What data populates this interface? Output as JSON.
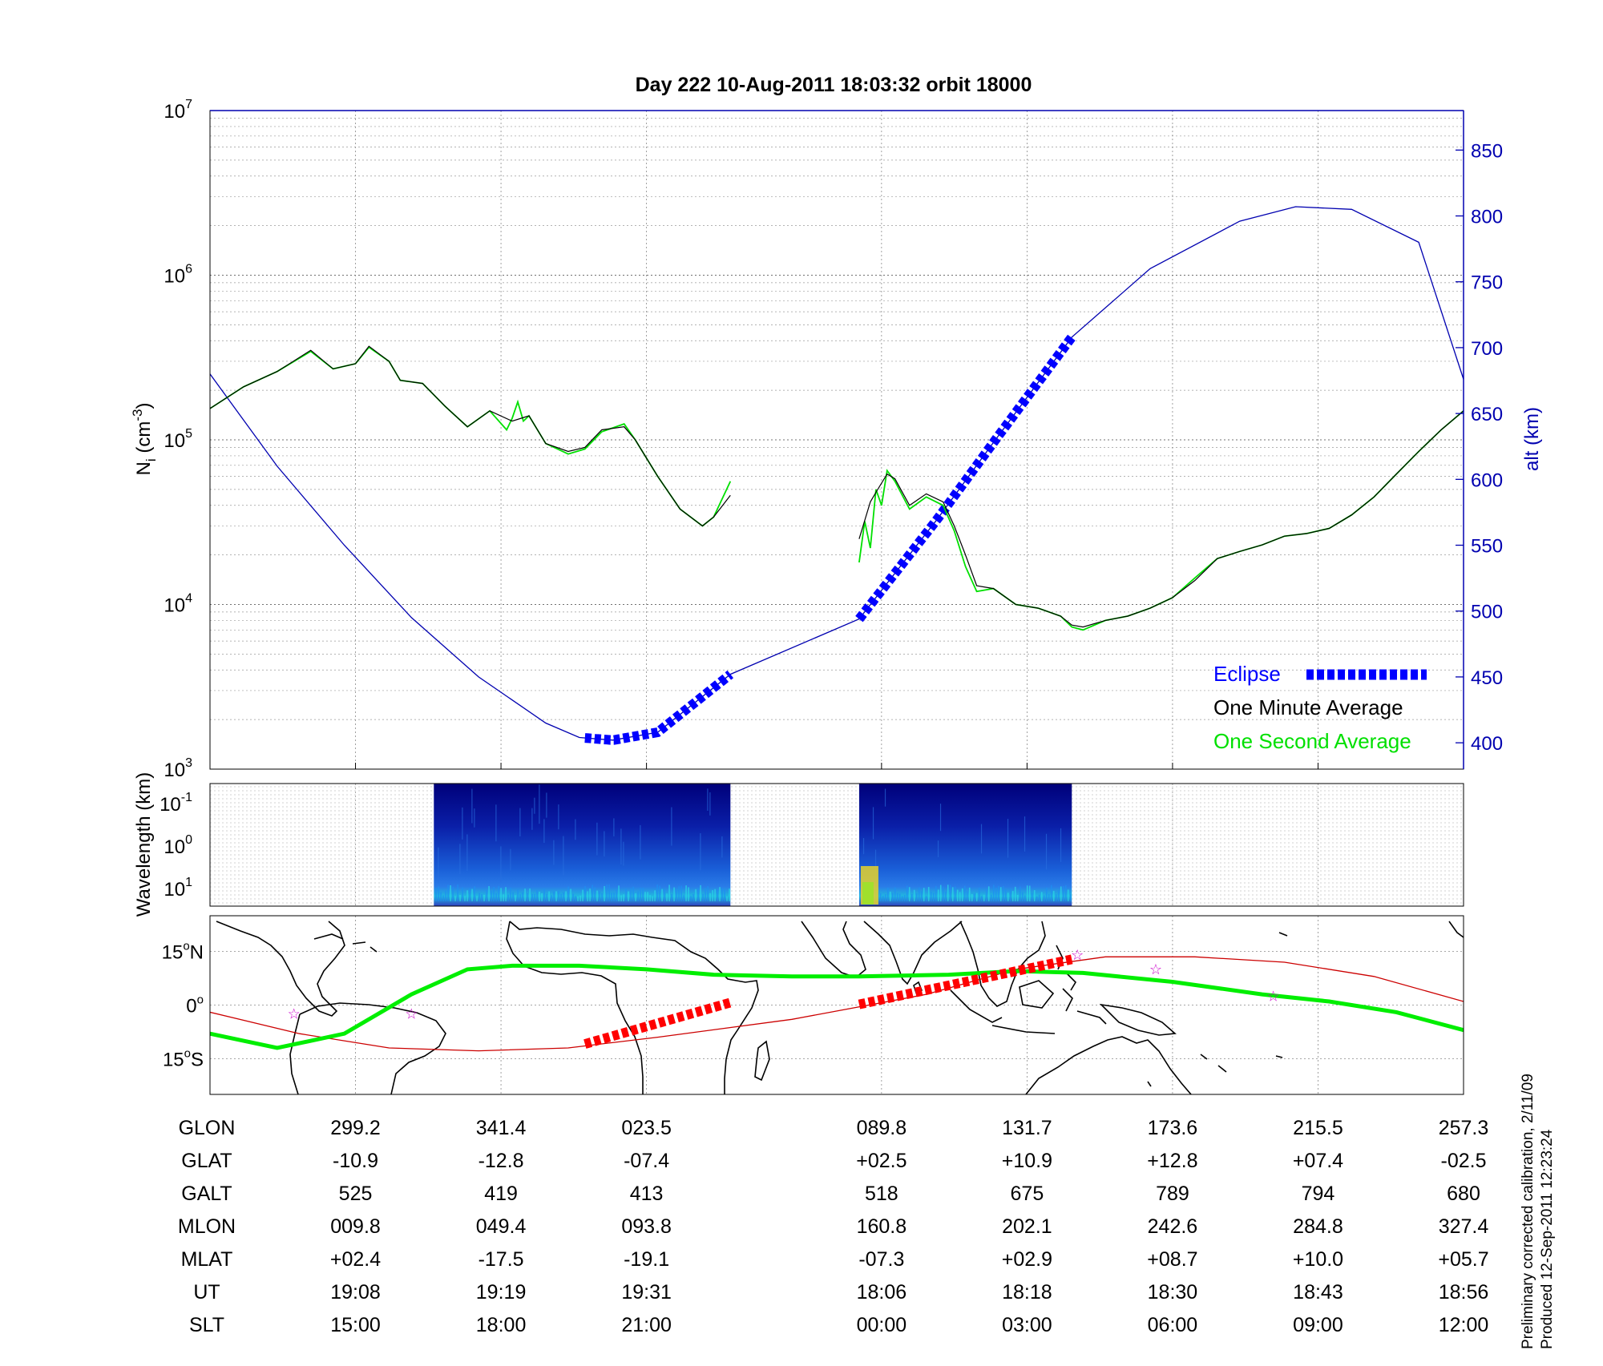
{
  "title": "Day 222  10-Aug-2011 18:03:32   orbit 18000",
  "footnote_line1": "Preliminary corrected calibration, 2/11/09",
  "footnote_line2": "Produced 12-Sep-2011 12:23:24",
  "colors": {
    "altitude": "#0000b0",
    "eclipse": "#0000ff",
    "minute_avg": "#000000",
    "second_avg": "#00e000",
    "track_green": "#00ee00",
    "track_red": "#cc0000",
    "eclipse_map": "#ff0000",
    "star": "#cc00cc"
  },
  "chart_data": [
    {
      "type": "line",
      "panel": "ion density and altitude",
      "ylabel_main": "N",
      "ylabel_sub": "i",
      "ylabel_unit": " (cm",
      "ylabel_sup": "-3",
      "ylabel_close": ")",
      "y_scale": "log",
      "ylim": [
        1000,
        10000000
      ],
      "y_ticks": [
        {
          "base": "10",
          "exp": "3"
        },
        {
          "base": "10",
          "exp": "4"
        },
        {
          "base": "10",
          "exp": "5"
        },
        {
          "base": "10",
          "exp": "6"
        },
        {
          "base": "10",
          "exp": "7"
        }
      ],
      "y2label": "alt (km)",
      "y2lim": [
        380,
        880
      ],
      "y2_ticks": [
        "400",
        "450",
        "500",
        "550",
        "600",
        "650",
        "700",
        "750",
        "800",
        "850"
      ],
      "x_unit": "minutes of the orbit (UT order: 18:06 → 19:31), centre at 18:06",
      "grid": true,
      "legend": {
        "position": "bottom-right",
        "entries": [
          {
            "label": "Eclipse",
            "style": "thick-dashed-blue"
          },
          {
            "label": "One Minute Average",
            "style": "black"
          },
          {
            "label": "One Second Average",
            "style": "green"
          }
        ]
      },
      "series": [
        {
          "name": "One Minute Average",
          "segments": [
            [
              [
                0,
                155000
              ],
              [
                3,
                210000
              ],
              [
                6,
                260000
              ],
              [
                9,
                350000
              ],
              [
                11,
                270000
              ],
              [
                13,
                290000
              ],
              [
                14.2,
                370000
              ],
              [
                16,
                300000
              ],
              [
                17,
                230000
              ],
              [
                19,
                220000
              ],
              [
                21,
                160000
              ],
              [
                23,
                120000
              ],
              [
                25,
                150000
              ],
              [
                27,
                130000
              ],
              [
                28.5,
                140000
              ],
              [
                30,
                95000
              ],
              [
                32,
                85000
              ],
              [
                33.5,
                90000
              ],
              [
                35,
                115000
              ],
              [
                37,
                120000
              ],
              [
                38,
                100000
              ],
              [
                40,
                60000
              ],
              [
                42,
                38000
              ],
              [
                44,
                30000
              ],
              [
                45,
                34000
              ],
              [
                46.5,
                46000
              ]
            ],
            [
              [
                58,
                25000
              ],
              [
                59,
                42000
              ],
              [
                59.5,
                48000
              ],
              [
                60.5,
                62000
              ],
              [
                61.2,
                58000
              ],
              [
                62.5,
                40000
              ],
              [
                64,
                47000
              ],
              [
                65.5,
                42000
              ],
              [
                66.5,
                30000
              ],
              [
                67.5,
                20000
              ],
              [
                68.5,
                13000
              ],
              [
                70,
                12500
              ],
              [
                72,
                10000
              ],
              [
                74,
                9500
              ],
              [
                76,
                8500
              ],
              [
                77,
                7500
              ],
              [
                78,
                7300
              ],
              [
                80,
                8000
              ],
              [
                82,
                8500
              ],
              [
                84,
                9500
              ],
              [
                86,
                11000
              ],
              [
                88,
                14000
              ],
              [
                90,
                19000
              ],
              [
                92,
                21000
              ],
              [
                94,
                23000
              ],
              [
                96,
                26000
              ],
              [
                98,
                27000
              ],
              [
                100,
                29000
              ],
              [
                102,
                35000
              ],
              [
                104,
                45000
              ],
              [
                106,
                62000
              ],
              [
                108,
                85000
              ],
              [
                110,
                115000
              ],
              [
                112,
                150000
              ]
            ]
          ]
        },
        {
          "name": "One Second Average",
          "segments": [
            [
              [
                0,
                155000
              ],
              [
                3,
                210000
              ],
              [
                6,
                260000
              ],
              [
                9,
                345000
              ],
              [
                11,
                270000
              ],
              [
                13,
                290000
              ],
              [
                14.2,
                365000
              ],
              [
                16,
                300000
              ],
              [
                17,
                230000
              ],
              [
                19,
                220000
              ],
              [
                21,
                160000
              ],
              [
                23,
                120000
              ],
              [
                25,
                150000
              ],
              [
                26.5,
                115000
              ],
              [
                27,
                135000
              ],
              [
                27.5,
                170000
              ],
              [
                28,
                130000
              ],
              [
                28.5,
                140000
              ],
              [
                30,
                95000
              ],
              [
                32,
                82000
              ],
              [
                33.5,
                88000
              ],
              [
                35,
                112000
              ],
              [
                37,
                125000
              ],
              [
                38,
                100000
              ],
              [
                40,
                60000
              ],
              [
                42,
                38000
              ],
              [
                44,
                30000
              ],
              [
                45,
                34000
              ],
              [
                46.5,
                56000
              ]
            ],
            [
              [
                58,
                18000
              ],
              [
                58.5,
                32000
              ],
              [
                59,
                22000
              ],
              [
                59.5,
                50000
              ],
              [
                60,
                40000
              ],
              [
                60.5,
                65000
              ],
              [
                61.2,
                56000
              ],
              [
                62.5,
                38000
              ],
              [
                64,
                45000
              ],
              [
                65.5,
                40000
              ],
              [
                66.5,
                28000
              ],
              [
                67.5,
                17000
              ],
              [
                68.5,
                12000
              ],
              [
                70,
                12500
              ],
              [
                72,
                10000
              ],
              [
                74,
                9500
              ],
              [
                76,
                8500
              ],
              [
                77,
                7300
              ],
              [
                78,
                7000
              ],
              [
                80,
                8000
              ],
              [
                82,
                8500
              ],
              [
                84,
                9500
              ],
              [
                86,
                11000
              ],
              [
                88,
                14500
              ],
              [
                90,
                19000
              ],
              [
                92,
                21000
              ],
              [
                94,
                23000
              ],
              [
                96,
                26000
              ],
              [
                98,
                27000
              ],
              [
                100,
                29000
              ],
              [
                102,
                35000
              ],
              [
                104,
                45000
              ],
              [
                106,
                62000
              ],
              [
                108,
                85000
              ],
              [
                110,
                115000
              ],
              [
                112,
                150000
              ]
            ]
          ]
        },
        {
          "name": "altitude",
          "axis": "right",
          "values": [
            [
              0,
              680
            ],
            [
              6,
              610
            ],
            [
              12,
              550
            ],
            [
              18,
              495
            ],
            [
              24,
              450
            ],
            [
              30,
              415
            ],
            [
              33,
              404
            ],
            [
              36,
              402
            ],
            [
              40,
              408
            ],
            [
              46.5,
              452
            ],
            [
              58,
              494
            ],
            [
              65,
              570
            ],
            [
              70,
              628
            ],
            [
              77,
              708
            ],
            [
              84,
              760
            ],
            [
              92,
              796
            ],
            [
              97,
              807
            ],
            [
              102,
              805
            ],
            [
              108,
              780
            ],
            [
              112,
              676
            ]
          ]
        }
      ],
      "eclipse_segments": [
        [
          33.5,
          46.5
        ],
        [
          58,
          77
        ]
      ]
    },
    {
      "type": "heatmap",
      "panel": "irregularity spectrogram",
      "ylabel": "Wavelength (km)",
      "y_ticks": [
        {
          "base": "10",
          "exp": "-1"
        },
        {
          "base": "10",
          "exp": "0"
        },
        {
          "base": "10",
          "exp": "1"
        }
      ],
      "data_segments": [
        [
          20,
          46.5
        ],
        [
          58,
          77
        ]
      ]
    },
    {
      "type": "map",
      "panel": "ground track",
      "lat_ticks": [
        {
          "num": "15",
          "hemi": "N"
        },
        {
          "num": "0",
          "hemi": ""
        },
        {
          "num": "15",
          "hemi": "S"
        }
      ],
      "degree_symbol": "o",
      "ylim": [
        -25,
        25
      ],
      "green_track": [
        [
          0,
          -8
        ],
        [
          6,
          -12
        ],
        [
          12,
          -8
        ],
        [
          18,
          3
        ],
        [
          23,
          10
        ],
        [
          27,
          11
        ],
        [
          33,
          11
        ],
        [
          39,
          10
        ],
        [
          45,
          8.5
        ],
        [
          52,
          8
        ],
        [
          58,
          8
        ],
        [
          66,
          8.5
        ],
        [
          72,
          9.5
        ],
        [
          78,
          9
        ],
        [
          86,
          6.5
        ],
        [
          94,
          3
        ],
        [
          100,
          1
        ],
        [
          106,
          -2
        ],
        [
          112,
          -7
        ]
      ],
      "red_track": [
        [
          0,
          -2
        ],
        [
          8,
          -8
        ],
        [
          16,
          -12
        ],
        [
          24,
          -12.8
        ],
        [
          32,
          -12
        ],
        [
          40,
          -9
        ],
        [
          52,
          -4
        ],
        [
          64,
          3
        ],
        [
          72,
          10
        ],
        [
          80,
          13.5
        ],
        [
          88,
          13.5
        ],
        [
          96,
          12
        ],
        [
          104,
          8
        ],
        [
          112,
          1
        ]
      ],
      "eclipse_segments": [
        [
          [
            33.5,
            -10.9
          ],
          [
            46.5,
            0.7
          ]
        ],
        [
          [
            58,
            0.2
          ],
          [
            77,
            12.8
          ]
        ]
      ],
      "star_positions": [
        [
          7.5,
          -2.5
        ],
        [
          18,
          -2.5
        ],
        [
          77.5,
          14
        ],
        [
          84.5,
          10
        ],
        [
          95,
          2.5
        ]
      ]
    }
  ],
  "table": {
    "row_labels": [
      "GLON",
      "GLAT",
      "GALT",
      "MLON",
      "MLAT",
      "UT",
      "SLT"
    ],
    "columns": [
      {
        "x": 13,
        "values": [
          "299.2",
          "-10.9",
          "525",
          "009.8",
          "+02.4",
          "19:08",
          "15:00"
        ]
      },
      {
        "x": 26,
        "values": [
          "341.4",
          "-12.8",
          "419",
          "049.4",
          "-17.5",
          "19:19",
          "18:00"
        ]
      },
      {
        "x": 39,
        "values": [
          "023.5",
          "-07.4",
          "413",
          "093.8",
          "-19.1",
          "19:31",
          "21:00"
        ]
      },
      {
        "x": 60,
        "values": [
          "089.8",
          "+02.5",
          "518",
          "160.8",
          "-07.3",
          "18:06",
          "00:00"
        ]
      },
      {
        "x": 73,
        "values": [
          "131.7",
          "+10.9",
          "675",
          "202.1",
          "+02.9",
          "18:18",
          "03:00"
        ]
      },
      {
        "x": 86,
        "values": [
          "173.6",
          "+12.8",
          "789",
          "242.6",
          "+08.7",
          "18:30",
          "06:00"
        ]
      },
      {
        "x": 99,
        "values": [
          "215.5",
          "+07.4",
          "794",
          "284.8",
          "+10.0",
          "18:43",
          "09:00"
        ]
      },
      {
        "x": 112,
        "values": [
          "257.3",
          "-02.5",
          "680",
          "327.4",
          "+05.7",
          "18:56",
          "12:00"
        ]
      }
    ]
  }
}
